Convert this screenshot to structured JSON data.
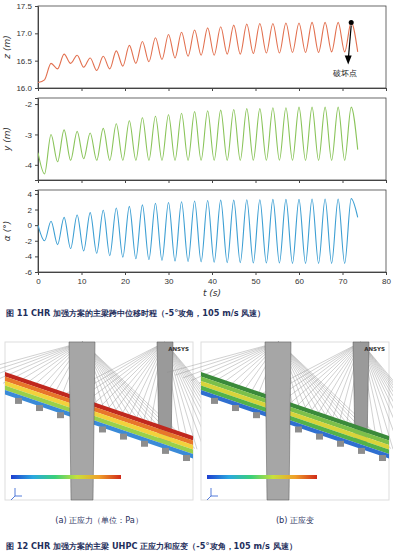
{
  "chart_data": [
    {
      "type": "line",
      "ylabel": "z (m)",
      "color": "#e2704f",
      "tick_labels": "y",
      "x": [
        0,
        1.5,
        3,
        4.5,
        6,
        7.5,
        9,
        10.5,
        12,
        13.5,
        15,
        16.5,
        18,
        19.5,
        21,
        22.5,
        24,
        25.5,
        27,
        28.5,
        30,
        31.5,
        33,
        34.5,
        36,
        37.5,
        39,
        40.5,
        42,
        43.5,
        45,
        46.5,
        48,
        49.5,
        51,
        52.5,
        54,
        55.5,
        57,
        58.5,
        60,
        61.5,
        63,
        64.5,
        66,
        67.5,
        69,
        70.5,
        72,
        73.5
      ],
      "values": [
        16.1,
        16.15,
        16.45,
        16.35,
        16.62,
        16.45,
        16.6,
        16.38,
        16.55,
        16.32,
        16.58,
        16.35,
        16.68,
        16.4,
        16.78,
        16.45,
        16.85,
        16.48,
        16.92,
        16.52,
        16.98,
        16.55,
        17.02,
        16.58,
        17.06,
        16.6,
        17.1,
        16.6,
        17.12,
        16.62,
        17.15,
        16.62,
        17.17,
        16.63,
        17.18,
        16.64,
        17.18,
        16.64,
        17.19,
        16.65,
        17.19,
        16.65,
        17.2,
        16.65,
        17.2,
        16.66,
        17.2,
        16.66,
        17.2,
        16.66
      ],
      "xlim": [
        0,
        80
      ],
      "xticks": [
        0,
        10,
        20,
        30,
        40,
        50,
        60,
        70,
        80
      ],
      "ylim": [
        16.0,
        17.5
      ],
      "yticks": [
        {
          "value": 16,
          "label": "16.0"
        },
        16.5,
        {
          "value": 17,
          "label": "17.0"
        },
        17.5
      ],
      "annotations": [
        {
          "x": 72,
          "y": 17.2,
          "text": "破坏点"
        }
      ]
    },
    {
      "type": "line",
      "ylabel": "y (m)",
      "color": "#8ac45a",
      "tick_labels": "y",
      "x": [
        0,
        1.5,
        3,
        4.5,
        6,
        7.5,
        9,
        10.5,
        12,
        13.5,
        15,
        16.5,
        18,
        19.5,
        21,
        22.5,
        24,
        25.5,
        27,
        28.5,
        30,
        31.5,
        33,
        34.5,
        36,
        37.5,
        39,
        40.5,
        42,
        43.5,
        45,
        46.5,
        48,
        49.5,
        51,
        52.5,
        54,
        55.5,
        57,
        58.5,
        60,
        61.5,
        63,
        64.5,
        66,
        67.5,
        69,
        70.5,
        72,
        73.5
      ],
      "values": [
        -3.6,
        -4.3,
        -3.0,
        -3.9,
        -2.85,
        -3.85,
        -2.9,
        -3.8,
        -2.95,
        -3.85,
        -2.8,
        -3.85,
        -2.65,
        -3.85,
        -2.55,
        -3.85,
        -2.45,
        -3.85,
        -2.4,
        -3.85,
        -2.35,
        -3.85,
        -2.3,
        -3.85,
        -2.25,
        -3.85,
        -2.22,
        -3.85,
        -2.2,
        -3.85,
        -2.18,
        -3.85,
        -2.15,
        -3.85,
        -2.15,
        -3.85,
        -2.12,
        -3.85,
        -2.12,
        -3.85,
        -2.1,
        -3.85,
        -2.1,
        -3.85,
        -2.1,
        -3.85,
        -2.1,
        -3.85,
        -2.1,
        -3.5
      ],
      "xlim": [
        0,
        80
      ],
      "xticks": [
        0,
        10,
        20,
        30,
        40,
        50,
        60,
        70,
        80
      ],
      "ylim": [
        -4.5,
        -1.8
      ],
      "yticks": [
        -4,
        -3,
        -2
      ]
    },
    {
      "type": "line",
      "ylabel": "α (°)",
      "xlabel": "t (s)",
      "color": "#3d9fd3",
      "x": [
        0,
        1.5,
        3,
        4.5,
        6,
        7.5,
        9,
        10.5,
        12,
        13.5,
        15,
        16.5,
        18,
        19.5,
        21,
        22.5,
        24,
        25.5,
        27,
        28.5,
        30,
        31.5,
        33,
        34.5,
        36,
        37.5,
        39,
        40.5,
        42,
        43.5,
        45,
        46.5,
        48,
        49.5,
        51,
        52.5,
        54,
        55.5,
        57,
        58.5,
        60,
        61.5,
        63,
        64.5,
        66,
        67.5,
        69,
        70.5,
        72,
        73.5
      ],
      "values": [
        0.0,
        -2.0,
        0.5,
        -2.5,
        1.0,
        -3.0,
        1.3,
        -3.3,
        1.6,
        -3.6,
        1.9,
        -3.9,
        2.2,
        -4.1,
        2.4,
        -4.3,
        2.6,
        -4.4,
        2.8,
        -4.5,
        2.9,
        -4.6,
        3.0,
        -4.65,
        3.1,
        -4.7,
        3.15,
        -4.75,
        3.2,
        -4.8,
        3.2,
        -4.8,
        3.25,
        -4.85,
        3.25,
        -4.85,
        3.3,
        -4.85,
        3.3,
        -4.9,
        3.3,
        -4.9,
        3.35,
        -4.9,
        3.35,
        -4.9,
        3.35,
        -4.9,
        3.4,
        1.0
      ],
      "xlim": [
        0,
        80
      ],
      "xticks": [
        0,
        10,
        20,
        30,
        40,
        50,
        60,
        70,
        80
      ],
      "ylim": [
        -6,
        4.5
      ],
      "yticks": [
        -6,
        -4,
        -2,
        0,
        2,
        4
      ]
    }
  ],
  "figure11": {
    "caption": "图 11 CHR 加强方案的主梁跨中位移时程（-5°攻角，105 m/s 风速）"
  },
  "figure12": {
    "logo": "ANSYS",
    "panels": [
      {
        "label": "(a)  正应力（单位：Pa）"
      },
      {
        "label": "(b)  正应变"
      }
    ],
    "caption": "图 12 CHR 加强方案的主梁 UHPC 正应力和应变（-5°攻角，105 m/s 风速）"
  }
}
